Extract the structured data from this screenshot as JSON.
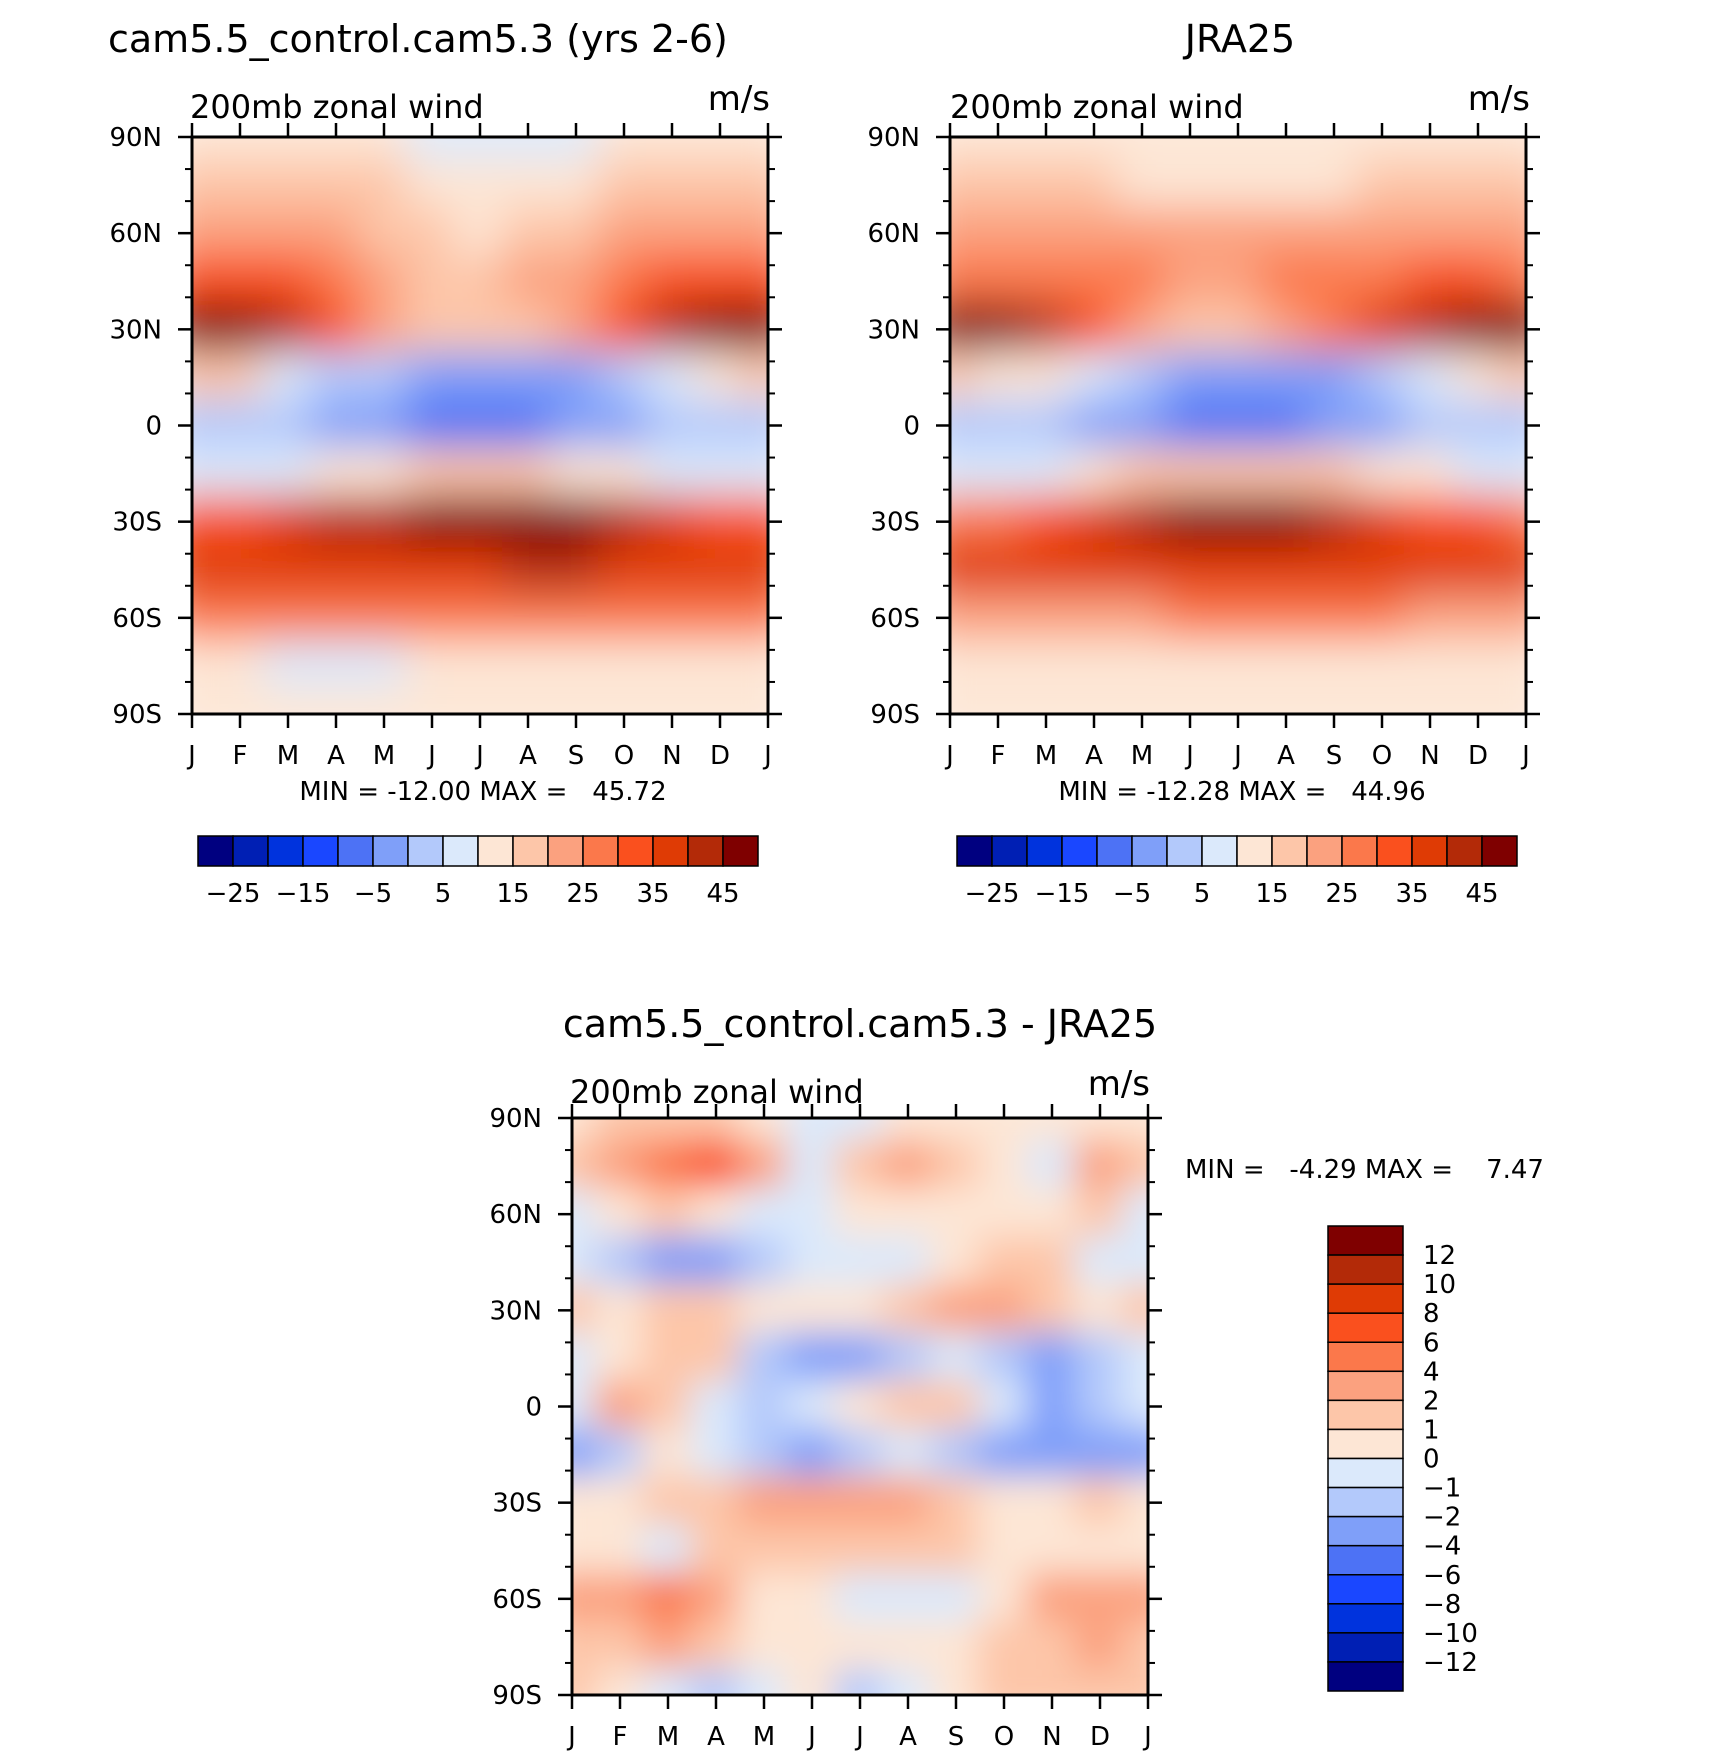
{
  "figure": {
    "panels": [
      {
        "title": "cam5.5_control.cam5.3 (yrs 2-6)",
        "subtitle_left": "200mb zonal wind",
        "subtitle_right": "m/s",
        "stats_text": "MIN = -12.00 MAX =   45.72"
      },
      {
        "title": "JRA25",
        "subtitle_left": "200mb zonal wind",
        "subtitle_right": "m/s",
        "stats_text": "MIN = -12.28 MAX =   44.96"
      },
      {
        "title": "cam5.5_control.cam5.3 - JRA25",
        "subtitle_left": "200mb zonal wind",
        "subtitle_right": "m/s",
        "stats_text": "MIN =   -4.29 MAX =    7.47"
      }
    ],
    "x_ticks": [
      "J",
      "F",
      "M",
      "A",
      "M",
      "J",
      "J",
      "A",
      "S",
      "O",
      "N",
      "D",
      "J"
    ],
    "y_ticks": [
      "90N",
      "60N",
      "30N",
      "0",
      "30S",
      "60S",
      "90S"
    ],
    "colorbar_field": {
      "levels": [
        -30,
        -25,
        -20,
        -15,
        -10,
        -5,
        0,
        5,
        10,
        15,
        20,
        25,
        30,
        35,
        40,
        45
      ],
      "tick_labels": [
        "-25",
        "-15",
        "-5",
        "5",
        "15",
        "25",
        "35",
        "45"
      ],
      "colors": [
        "#000080",
        "#001fb4",
        "#0033dd",
        "#1a47ff",
        "#4d72f5",
        "#7f9ff9",
        "#b3c9fb",
        "#dbe9fb",
        "#fde6d5",
        "#fdc6a9",
        "#fba17f",
        "#fb784b",
        "#fa501e",
        "#df3b05",
        "#b32a08",
        "#7f0000"
      ]
    },
    "colorbar_diff": {
      "levels": [
        -12,
        -10,
        -8,
        -6,
        -4,
        -2,
        -1,
        0,
        1,
        2,
        4,
        6,
        8,
        10,
        12
      ],
      "tick_labels": [
        "12",
        "10",
        "8",
        "6",
        "4",
        "2",
        "1",
        "0",
        "-1",
        "-2",
        "-4",
        "-6",
        "-8",
        "-10",
        "-12"
      ],
      "colors": [
        "#000080",
        "#001fb4",
        "#0033dd",
        "#1a47ff",
        "#4d72f5",
        "#7f9ff9",
        "#b3c9fb",
        "#dbe9fb",
        "#fde6d5",
        "#fdc6a9",
        "#fba17f",
        "#fb784b",
        "#fa501e",
        "#df3b05",
        "#b32a08",
        "#7f0000"
      ]
    }
  },
  "chart_data": [
    {
      "type": "heatmap",
      "title": "cam5.5_control.cam5.3 (yrs 2-6)",
      "subtitle": "200mb zonal wind",
      "units": "m/s",
      "x": [
        "J",
        "F",
        "M",
        "A",
        "M",
        "J",
        "J",
        "A",
        "S",
        "O",
        "N",
        "D",
        "J"
      ],
      "y": [
        90,
        75,
        60,
        45,
        30,
        15,
        0,
        -15,
        -30,
        -45,
        -60,
        -75,
        -90
      ],
      "values": [
        [
          8,
          8,
          8,
          8,
          6,
          4,
          3,
          4,
          4,
          6,
          7,
          8,
          8
        ],
        [
          12,
          13,
          13,
          14,
          11,
          7,
          5,
          7,
          8,
          10,
          12,
          12,
          12
        ],
        [
          16,
          17,
          17,
          16,
          13,
          10,
          9,
          10,
          12,
          15,
          16,
          16,
          16
        ],
        [
          28,
          27,
          26,
          21,
          16,
          14,
          14,
          15,
          17,
          22,
          27,
          29,
          28
        ],
        [
          44,
          43,
          38,
          28,
          17,
          11,
          11,
          13,
          18,
          28,
          38,
          43,
          44
        ],
        [
          12,
          10,
          4,
          -2,
          -5,
          -8,
          -9,
          -8,
          -7,
          -3,
          3,
          8,
          12
        ],
        [
          -3,
          -4,
          -5,
          -7,
          -10,
          -12,
          -12,
          -11,
          -9,
          -6,
          -4,
          -3,
          -3
        ],
        [
          1,
          1,
          3,
          5,
          8,
          10,
          11,
          10,
          9,
          7,
          4,
          2,
          1
        ],
        [
          26,
          25,
          30,
          35,
          39,
          42,
          43,
          42,
          40,
          35,
          30,
          27,
          26
        ],
        [
          34,
          34,
          31,
          32,
          33,
          33,
          34,
          35,
          36,
          34,
          34,
          34,
          34
        ],
        [
          21,
          21,
          21,
          21,
          21,
          21,
          22,
          22,
          22,
          22,
          21,
          21,
          21
        ],
        [
          6,
          6,
          4,
          4,
          4,
          5,
          6,
          6,
          6,
          5,
          5,
          6,
          6
        ],
        [
          5,
          5,
          5,
          5,
          5,
          5,
          5,
          5,
          5,
          5,
          5,
          5,
          5
        ]
      ],
      "min": -12.0,
      "max": 45.72,
      "xlabel": "",
      "ylabel": "",
      "colorbar_levels": [
        -30,
        -25,
        -20,
        -15,
        -10,
        -5,
        0,
        5,
        10,
        15,
        20,
        25,
        30,
        35,
        40,
        45
      ]
    },
    {
      "type": "heatmap",
      "title": "JRA25",
      "subtitle": "200mb zonal wind",
      "units": "m/s",
      "x": [
        "J",
        "F",
        "M",
        "A",
        "M",
        "J",
        "J",
        "A",
        "S",
        "O",
        "N",
        "D",
        "J"
      ],
      "y": [
        90,
        75,
        60,
        45,
        30,
        15,
        0,
        -15,
        -30,
        -45,
        -60,
        -75,
        -90
      ],
      "values": [
        [
          7,
          7,
          7,
          7,
          7,
          7,
          7,
          7,
          7,
          7,
          7,
          7,
          7
        ],
        [
          11,
          11,
          11,
          10,
          9,
          8,
          8,
          8,
          9,
          10,
          11,
          11,
          11
        ],
        [
          16,
          16,
          16,
          16,
          16,
          15,
          15,
          15,
          15,
          15,
          16,
          16,
          16
        ],
        [
          24,
          24,
          24,
          23,
          21,
          19,
          19,
          20,
          22,
          24,
          26,
          25,
          24
        ],
        [
          43,
          42,
          38,
          28,
          19,
          14,
          14,
          16,
          22,
          30,
          38,
          42,
          43
        ],
        [
          10,
          9,
          5,
          0,
          -4,
          -8,
          -9,
          -8,
          -6,
          -2,
          3,
          7,
          10
        ],
        [
          -4,
          -4,
          -5,
          -7,
          -10,
          -12,
          -12,
          -11,
          -9,
          -6,
          -4,
          -4,
          -4
        ],
        [
          2,
          2,
          4,
          7,
          10,
          13,
          14,
          13,
          12,
          9,
          5,
          3,
          2
        ],
        [
          24,
          24,
          28,
          33,
          37,
          40,
          41,
          40,
          38,
          34,
          28,
          25,
          24
        ],
        [
          32,
          32,
          31,
          31,
          32,
          32,
          33,
          33,
          33,
          32,
          32,
          32,
          32
        ],
        [
          18,
          18,
          18,
          18,
          19,
          20,
          21,
          21,
          21,
          20,
          19,
          18,
          18
        ],
        [
          5,
          5,
          5,
          5,
          6,
          7,
          7,
          7,
          7,
          6,
          6,
          5,
          5
        ],
        [
          5,
          5,
          5,
          5,
          5,
          5,
          5,
          5,
          5,
          5,
          5,
          5,
          5
        ]
      ],
      "min": -12.28,
      "max": 44.96,
      "xlabel": "",
      "ylabel": "",
      "colorbar_levels": [
        -30,
        -25,
        -20,
        -15,
        -10,
        -5,
        0,
        5,
        10,
        15,
        20,
        25,
        30,
        35,
        40,
        45
      ]
    },
    {
      "type": "heatmap",
      "title": "cam5.5_control.cam5.3 - JRA25",
      "subtitle": "200mb zonal wind",
      "units": "m/s",
      "x": [
        "J",
        "F",
        "M",
        "A",
        "M",
        "J",
        "J",
        "A",
        "S",
        "O",
        "N",
        "D",
        "J"
      ],
      "y": [
        90,
        75,
        60,
        45,
        30,
        15,
        0,
        -15,
        -30,
        -45,
        -60,
        -75,
        -90
      ],
      "values": [
        [
          0.5,
          1.2,
          1.8,
          1.5,
          0.5,
          -0.5,
          -0.2,
          0.3,
          0.3,
          0.5,
          0.8,
          0.5,
          0.5
        ],
        [
          1.5,
          3.0,
          4.5,
          6.0,
          2.5,
          -0.6,
          1.8,
          2.5,
          1.5,
          0.3,
          -0.8,
          3.5,
          1.5
        ],
        [
          -0.6,
          0.4,
          1.0,
          0.5,
          -0.2,
          -0.5,
          0.5,
          0.8,
          0.6,
          0.5,
          0.3,
          1.2,
          -0.6
        ],
        [
          -0.5,
          -1.5,
          -2.5,
          -2.8,
          -1.5,
          -1.0,
          -0.8,
          -0.5,
          0.5,
          1.2,
          1.0,
          -0.5,
          -0.5
        ],
        [
          1.0,
          0.5,
          1.2,
          1.8,
          0.5,
          0.3,
          0.5,
          1.5,
          2.5,
          2.5,
          1.5,
          0.8,
          1.0
        ],
        [
          -0.8,
          0.6,
          1.5,
          1.0,
          -1.5,
          -2.5,
          -2.8,
          -2.0,
          -0.8,
          -1.2,
          -2.5,
          -1.5,
          -0.8
        ],
        [
          -0.8,
          2.0,
          1.2,
          -0.6,
          -1.5,
          -0.8,
          0.5,
          1.2,
          1.5,
          -1.0,
          -3.0,
          -2.0,
          -0.8
        ],
        [
          -2.5,
          -1.2,
          0.5,
          -0.8,
          -1.5,
          -2.2,
          -2.0,
          -0.8,
          -1.2,
          -2.5,
          -3.8,
          -2.5,
          -2.5
        ],
        [
          0.5,
          0.8,
          1.5,
          1.5,
          2.2,
          2.5,
          3.5,
          2.0,
          1.5,
          0.5,
          0.5,
          1.2,
          0.5
        ],
        [
          0.5,
          0.4,
          -0.8,
          1.0,
          1.2,
          1.2,
          1.5,
          1.5,
          1.2,
          0.8,
          0.8,
          0.5,
          0.5
        ],
        [
          2.5,
          3.5,
          4.5,
          3.5,
          0.8,
          0.5,
          -0.3,
          -0.8,
          -0.6,
          0.5,
          2.0,
          3.5,
          2.5
        ],
        [
          1.2,
          1.5,
          2.0,
          1.5,
          0.8,
          0.5,
          0.5,
          0.6,
          0.5,
          1.2,
          1.5,
          2.0,
          1.2
        ],
        [
          1.5,
          0.8,
          -0.8,
          -1.5,
          -0.5,
          0.5,
          -1.2,
          -0.5,
          0.8,
          1.2,
          1.5,
          1.5,
          1.5
        ]
      ],
      "min": -4.29,
      "max": 7.47,
      "xlabel": "",
      "ylabel": "",
      "colorbar_levels": [
        -12,
        -10,
        -8,
        -6,
        -4,
        -2,
        -1,
        0,
        1,
        2,
        4,
        6,
        8,
        10,
        12
      ]
    }
  ]
}
